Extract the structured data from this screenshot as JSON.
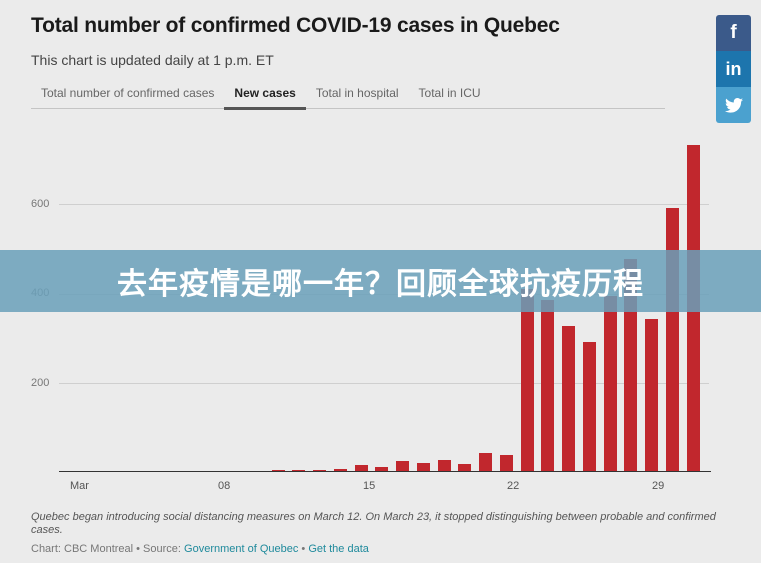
{
  "header": {
    "title": "Total number of confirmed COVID-19 cases in Quebec",
    "subtitle": "This chart is updated daily at 1 p.m. ET"
  },
  "tabs": [
    {
      "label": "Total number of confirmed cases",
      "active": false
    },
    {
      "label": "New cases",
      "active": true
    },
    {
      "label": "Total in hospital",
      "active": false
    },
    {
      "label": "Total in ICU",
      "active": false
    }
  ],
  "share": {
    "facebook": "f",
    "linkedin": "in",
    "twitter": "twitter-bird"
  },
  "banner": {
    "text": "去年疫情是哪一年？回顾全球抗疫历程"
  },
  "footer": {
    "note": "Quebec began introducing social distancing measures on March 12. On March 23, it stopped distinguishing between probable and confirmed cases.",
    "credit_prefix": "Chart: CBC Montreal • Source: ",
    "source_link": "Government of Quebec",
    "separator": " • ",
    "data_link": "Get the data"
  },
  "colors": {
    "bar": "#c1272d",
    "background": "#ebebeb",
    "link": "#1f8a9c",
    "banner": "#6aa0ba"
  },
  "chart_data": {
    "type": "bar",
    "title": "Total number of confirmed COVID-19 cases in Quebec — New cases",
    "xlabel": "",
    "ylabel": "",
    "ylim": [
      0,
      740
    ],
    "yticks": [
      200,
      400,
      600
    ],
    "xtick_labels": [
      "Mar",
      "08",
      "15",
      "22",
      "29"
    ],
    "grid": true,
    "categories": [
      "Mar 1",
      "Mar 2",
      "Mar 3",
      "Mar 4",
      "Mar 5",
      "Mar 6",
      "Mar 7",
      "Mar 8",
      "Mar 9",
      "Mar 10",
      "Mar 11",
      "Mar 12",
      "Mar 13",
      "Mar 14",
      "Mar 15",
      "Mar 16",
      "Mar 17",
      "Mar 18",
      "Mar 19",
      "Mar 20",
      "Mar 21",
      "Mar 22",
      "Mar 23",
      "Mar 24",
      "Mar 25",
      "Mar 26",
      "Mar 27",
      "Mar 28",
      "Mar 29",
      "Mar 30",
      "Mar 31"
    ],
    "values": [
      0,
      0,
      0,
      0,
      0,
      0,
      0,
      0,
      0,
      0,
      2,
      2,
      2,
      5,
      14,
      9,
      23,
      18,
      25,
      16,
      41,
      36,
      408,
      382,
      324,
      289,
      392,
      474,
      340,
      589,
      730
    ]
  }
}
